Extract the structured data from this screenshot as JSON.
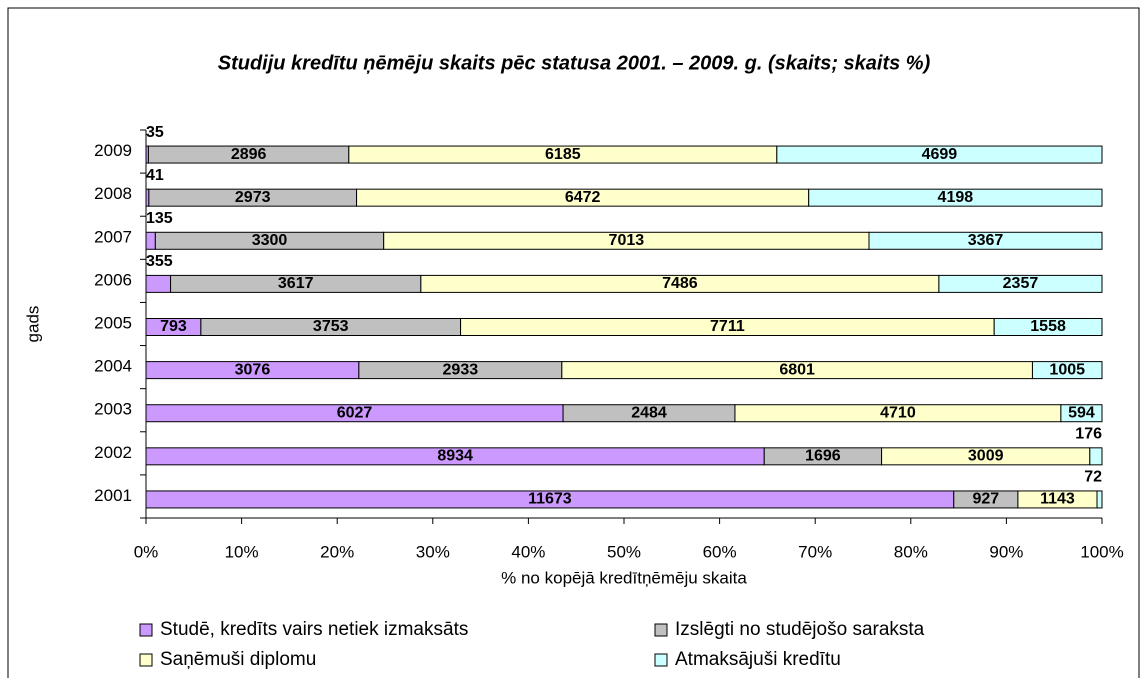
{
  "chart_data": {
    "type": "stacked_bar_100_horizontal",
    "title": "Studiju kredītu ņēmēju skaits pēc statusa 2001. – 2009. g. (skaits; skaits %)",
    "x_label": "% no kopējā kredītņēmēju skaita",
    "y_label": "gads",
    "categories": [
      "2001",
      "2002",
      "2003",
      "2004",
      "2005",
      "2006",
      "2007",
      "2008",
      "2009"
    ],
    "series": [
      {
        "name": "Studē, kredīts vairs netiek izmaksāts",
        "color": "#cc99ff",
        "values": [
          11673,
          8934,
          6027,
          3076,
          793,
          355,
          135,
          41,
          35
        ]
      },
      {
        "name": "Izslēgti no studējošo saraksta",
        "color": "#c0c0c0",
        "values": [
          927,
          1696,
          2484,
          2933,
          3753,
          3617,
          3300,
          2973,
          2896
        ]
      },
      {
        "name": "Saņēmuši diplomu",
        "color": "#ffffcc",
        "values": [
          1143,
          3009,
          4710,
          6801,
          7711,
          7486,
          7013,
          6472,
          6185
        ]
      },
      {
        "name": "Atmaksājuši kredītu",
        "color": "#ccffff",
        "values": [
          72,
          176,
          594,
          1005,
          1558,
          2357,
          3367,
          4198,
          4699
        ]
      }
    ],
    "xlim": [
      0,
      100
    ],
    "xticks": [
      {
        "value": 0,
        "label": "0%"
      },
      {
        "value": 10,
        "label": "10%"
      },
      {
        "value": 20,
        "label": "20%"
      },
      {
        "value": 30,
        "label": "30%"
      },
      {
        "value": 40,
        "label": "40%"
      },
      {
        "value": 50,
        "label": "50%"
      },
      {
        "value": 60,
        "label": "60%"
      },
      {
        "value": 70,
        "label": "70%"
      },
      {
        "value": 80,
        "label": "80%"
      },
      {
        "value": 90,
        "label": "90%"
      },
      {
        "value": 100,
        "label": "100%"
      }
    ],
    "legend": "bottom"
  }
}
